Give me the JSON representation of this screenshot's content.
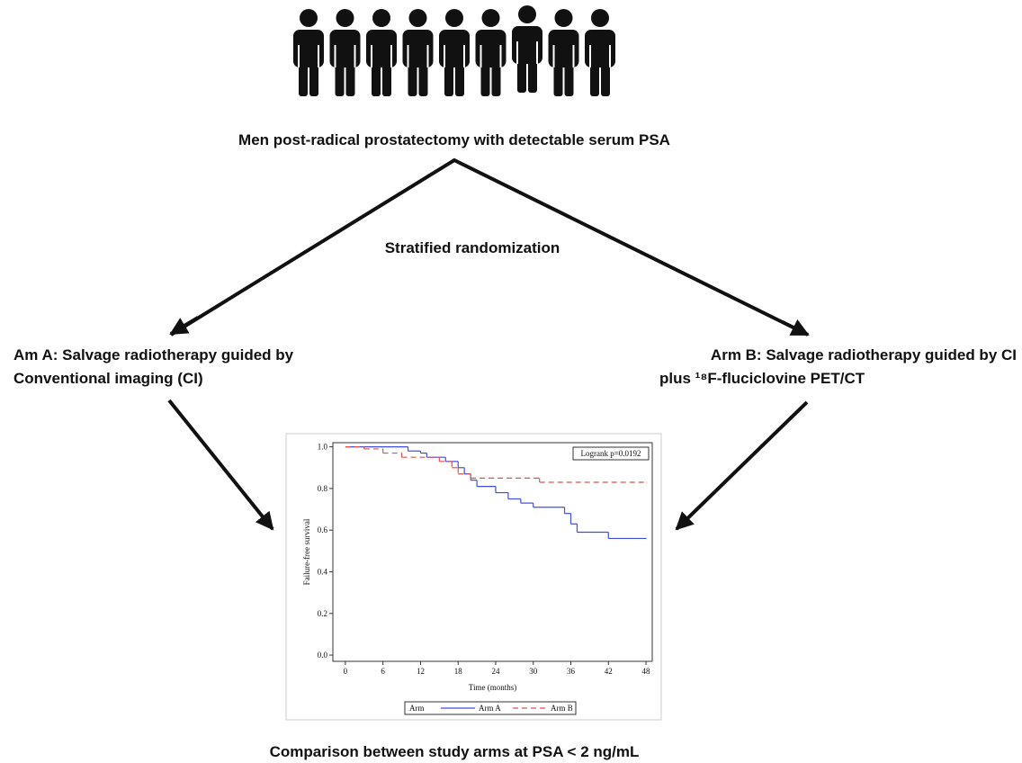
{
  "diagram": {
    "population": "Men post-radical prostatectomy with detectable serum PSA",
    "randomization": "Stratified randomization",
    "arm_a": [
      "Am A: Salvage radiotherapy guided by",
      "Conventional imaging (CI)"
    ],
    "arm_b": [
      "Arm B: Salvage radiotherapy guided by CI",
      "plus ¹⁸F-fluciclovine PET/CT"
    ],
    "outcome": "Comparison between study arms at PSA < 2 ng/mL"
  },
  "chart_data": {
    "type": "line",
    "step": true,
    "x_label": "Time (months)",
    "y_label": "Failure-free survival",
    "annotation": "Logrank p=0.0192",
    "legend_title": "Arm",
    "xlim": [
      -2,
      49
    ],
    "xticks": [
      0,
      6,
      12,
      18,
      24,
      30,
      36,
      42,
      48
    ],
    "ylim": [
      -0.03,
      1.02
    ],
    "yticks": [
      {
        "value": 0,
        "label": "0.0"
      },
      {
        "value": 0.2,
        "label": "0.2"
      },
      {
        "value": 0.4,
        "label": "0.4"
      },
      {
        "value": 0.6,
        "label": "0.6"
      },
      {
        "value": 0.8,
        "label": "0.8"
      },
      {
        "value": 1,
        "label": "1.0"
      }
    ],
    "series": [
      {
        "name": "Arm A",
        "color": "#3c4fe0",
        "dash": false,
        "x": [
          0,
          10,
          12,
          13,
          16,
          18,
          19,
          20,
          21,
          24,
          26,
          28,
          30,
          35,
          36,
          37,
          42,
          48
        ],
        "values": [
          1.0,
          0.98,
          0.97,
          0.95,
          0.93,
          0.9,
          0.87,
          0.84,
          0.81,
          0.78,
          0.75,
          0.73,
          0.71,
          0.68,
          0.63,
          0.59,
          0.56,
          0.56
        ]
      },
      {
        "name": "Arm B",
        "color": "#d9534f",
        "dash": true,
        "x": [
          0,
          3,
          6,
          9,
          15,
          17,
          18,
          20,
          31,
          48
        ],
        "values": [
          1.0,
          0.99,
          0.97,
          0.95,
          0.93,
          0.9,
          0.87,
          0.85,
          0.83,
          0.83
        ]
      }
    ]
  }
}
